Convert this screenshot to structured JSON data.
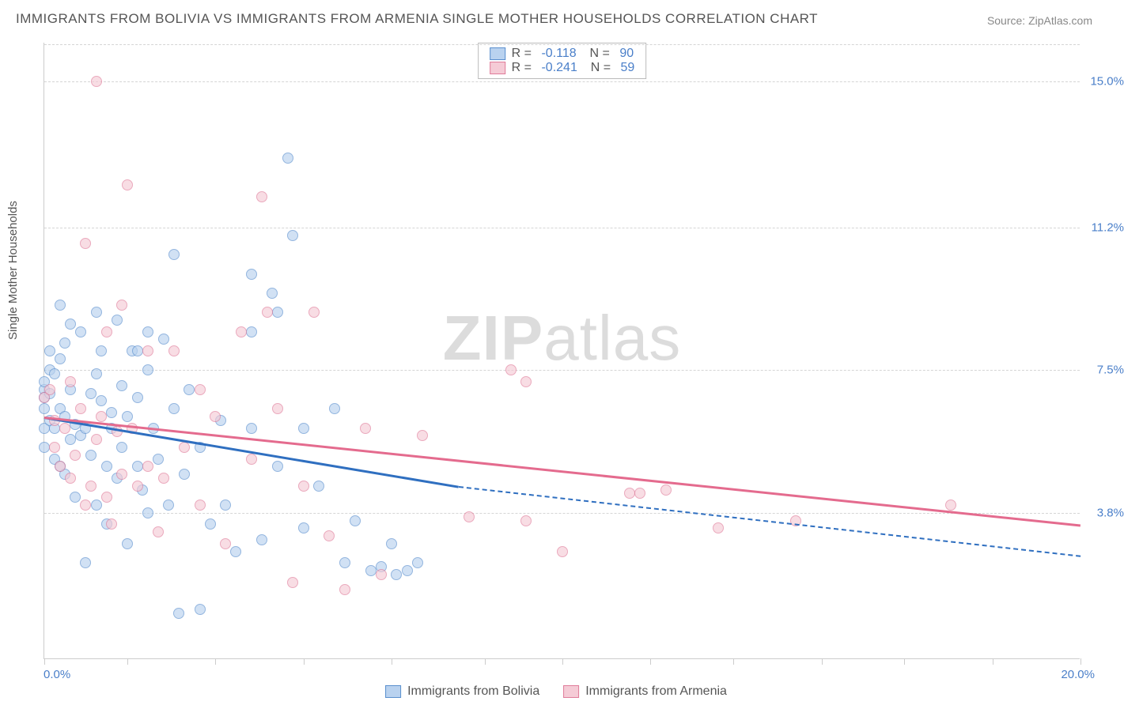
{
  "title": "IMMIGRANTS FROM BOLIVIA VS IMMIGRANTS FROM ARMENIA SINGLE MOTHER HOUSEHOLDS CORRELATION CHART",
  "source": "Source: ZipAtlas.com",
  "ylabel": "Single Mother Households",
  "watermark_bold": "ZIP",
  "watermark_light": "atlas",
  "chart": {
    "type": "scatter-with-regression",
    "xlim": [
      0,
      20
    ],
    "ylim": [
      0,
      16
    ],
    "x_start_label": "0.0%",
    "x_end_label": "20.0%",
    "xtick_positions": [
      0,
      1.6,
      3.3,
      5.0,
      6.7,
      8.5,
      10.0,
      11.7,
      13.3,
      15.0,
      16.6,
      18.3,
      20.0
    ],
    "ytick_labels": [
      {
        "value": 3.8,
        "label": "3.8%"
      },
      {
        "value": 7.5,
        "label": "7.5%"
      },
      {
        "value": 11.2,
        "label": "11.2%"
      },
      {
        "value": 15.0,
        "label": "15.0%"
      }
    ],
    "grid_color": "#d5d5d5",
    "background_color": "#ffffff",
    "axis_label_color": "#4a7fc9",
    "marker_radius": 7,
    "marker_opacity": 0.65
  },
  "series": [
    {
      "name": "Immigrants from Bolivia",
      "fill_color": "#b9d2ef",
      "stroke_color": "#5a8fce",
      "line_color": "#2f6fc0",
      "R": "-0.118",
      "N": "90",
      "regression": {
        "x1": 0,
        "y1": 6.3,
        "x2_solid": 8.0,
        "y2_solid": 4.5,
        "x2": 20,
        "y2": 2.7
      },
      "points": [
        [
          0.0,
          7.0
        ],
        [
          0.0,
          6.5
        ],
        [
          0.0,
          6.0
        ],
        [
          0.0,
          5.5
        ],
        [
          0.0,
          6.8
        ],
        [
          0.0,
          7.2
        ],
        [
          0.1,
          6.9
        ],
        [
          0.1,
          6.2
        ],
        [
          0.1,
          7.5
        ],
        [
          0.1,
          8.0
        ],
        [
          0.2,
          6.0
        ],
        [
          0.2,
          5.2
        ],
        [
          0.2,
          7.4
        ],
        [
          0.3,
          5.0
        ],
        [
          0.3,
          6.5
        ],
        [
          0.3,
          7.8
        ],
        [
          0.4,
          6.3
        ],
        [
          0.4,
          4.8
        ],
        [
          0.4,
          8.2
        ],
        [
          0.5,
          5.7
        ],
        [
          0.5,
          7.0
        ],
        [
          0.6,
          6.1
        ],
        [
          0.6,
          4.2
        ],
        [
          0.7,
          5.8
        ],
        [
          0.7,
          8.5
        ],
        [
          0.8,
          6.0
        ],
        [
          0.8,
          2.5
        ],
        [
          0.9,
          6.9
        ],
        [
          0.9,
          5.3
        ],
        [
          1.0,
          7.4
        ],
        [
          1.0,
          4.0
        ],
        [
          1.1,
          6.7
        ],
        [
          1.1,
          8.0
        ],
        [
          1.2,
          5.0
        ],
        [
          1.2,
          3.5
        ],
        [
          1.3,
          6.4
        ],
        [
          1.3,
          6.0
        ],
        [
          1.4,
          8.8
        ],
        [
          1.4,
          4.7
        ],
        [
          1.5,
          5.5
        ],
        [
          1.5,
          7.1
        ],
        [
          1.6,
          6.3
        ],
        [
          1.6,
          3.0
        ],
        [
          1.7,
          8.0
        ],
        [
          1.8,
          5.0
        ],
        [
          1.8,
          6.8
        ],
        [
          1.9,
          4.4
        ],
        [
          2.0,
          7.5
        ],
        [
          2.0,
          3.8
        ],
        [
          2.1,
          6.0
        ],
        [
          2.2,
          5.2
        ],
        [
          2.3,
          8.3
        ],
        [
          2.4,
          4.0
        ],
        [
          2.5,
          10.5
        ],
        [
          2.5,
          6.5
        ],
        [
          2.6,
          1.2
        ],
        [
          2.7,
          4.8
        ],
        [
          2.8,
          7.0
        ],
        [
          3.0,
          5.5
        ],
        [
          3.0,
          1.3
        ],
        [
          3.2,
          3.5
        ],
        [
          3.4,
          6.2
        ],
        [
          3.5,
          4.0
        ],
        [
          3.7,
          2.8
        ],
        [
          4.0,
          6.0
        ],
        [
          4.0,
          8.5
        ],
        [
          4.0,
          10.0
        ],
        [
          4.2,
          3.1
        ],
        [
          4.4,
          9.5
        ],
        [
          4.5,
          5.0
        ],
        [
          4.5,
          9.0
        ],
        [
          4.7,
          13.0
        ],
        [
          4.8,
          11.0
        ],
        [
          5.0,
          3.4
        ],
        [
          5.0,
          6.0
        ],
        [
          5.3,
          4.5
        ],
        [
          5.6,
          6.5
        ],
        [
          5.8,
          2.5
        ],
        [
          6.0,
          3.6
        ],
        [
          6.3,
          2.3
        ],
        [
          6.5,
          2.4
        ],
        [
          6.7,
          3.0
        ],
        [
          6.8,
          2.2
        ],
        [
          7.0,
          2.3
        ],
        [
          7.2,
          2.5
        ],
        [
          1.0,
          9.0
        ],
        [
          0.3,
          9.2
        ],
        [
          0.5,
          8.7
        ],
        [
          1.8,
          8.0
        ],
        [
          2.0,
          8.5
        ]
      ]
    },
    {
      "name": "Immigrants from Armenia",
      "fill_color": "#f5cbd6",
      "stroke_color": "#e07c9a",
      "line_color": "#e46b8e",
      "R": "-0.241",
      "N": "59",
      "regression": {
        "x1": 0,
        "y1": 6.3,
        "x2_solid": 20,
        "y2_solid": 3.5,
        "x2": 20,
        "y2": 3.5
      },
      "points": [
        [
          0.0,
          6.8
        ],
        [
          0.1,
          7.0
        ],
        [
          0.2,
          6.2
        ],
        [
          0.2,
          5.5
        ],
        [
          0.3,
          5.0
        ],
        [
          0.4,
          6.0
        ],
        [
          0.5,
          4.7
        ],
        [
          0.5,
          7.2
        ],
        [
          0.6,
          5.3
        ],
        [
          0.7,
          6.5
        ],
        [
          0.8,
          4.0
        ],
        [
          0.8,
          10.8
        ],
        [
          0.9,
          4.5
        ],
        [
          1.0,
          15.0
        ],
        [
          1.0,
          5.7
        ],
        [
          1.1,
          6.3
        ],
        [
          1.2,
          4.2
        ],
        [
          1.2,
          8.5
        ],
        [
          1.3,
          3.5
        ],
        [
          1.4,
          5.9
        ],
        [
          1.5,
          9.2
        ],
        [
          1.5,
          4.8
        ],
        [
          1.6,
          12.3
        ],
        [
          1.7,
          6.0
        ],
        [
          1.8,
          4.5
        ],
        [
          2.0,
          8.0
        ],
        [
          2.0,
          5.0
        ],
        [
          2.2,
          3.3
        ],
        [
          2.3,
          4.7
        ],
        [
          2.5,
          8.0
        ],
        [
          2.7,
          5.5
        ],
        [
          3.0,
          7.0
        ],
        [
          3.0,
          4.0
        ],
        [
          3.3,
          6.3
        ],
        [
          3.5,
          3.0
        ],
        [
          3.8,
          8.5
        ],
        [
          4.0,
          5.2
        ],
        [
          4.3,
          9.0
        ],
        [
          4.5,
          6.5
        ],
        [
          4.8,
          2.0
        ],
        [
          5.0,
          4.5
        ],
        [
          5.2,
          9.0
        ],
        [
          5.5,
          3.2
        ],
        [
          5.8,
          1.8
        ],
        [
          6.2,
          6.0
        ],
        [
          6.5,
          2.2
        ],
        [
          7.3,
          5.8
        ],
        [
          8.2,
          3.7
        ],
        [
          9.0,
          7.5
        ],
        [
          9.3,
          7.2
        ],
        [
          10.0,
          2.8
        ],
        [
          11.5,
          4.3
        ],
        [
          12.0,
          4.4
        ],
        [
          13.0,
          3.4
        ],
        [
          14.5,
          3.6
        ],
        [
          17.5,
          4.0
        ],
        [
          11.3,
          4.3
        ],
        [
          9.3,
          3.6
        ],
        [
          4.2,
          12.0
        ]
      ]
    }
  ]
}
